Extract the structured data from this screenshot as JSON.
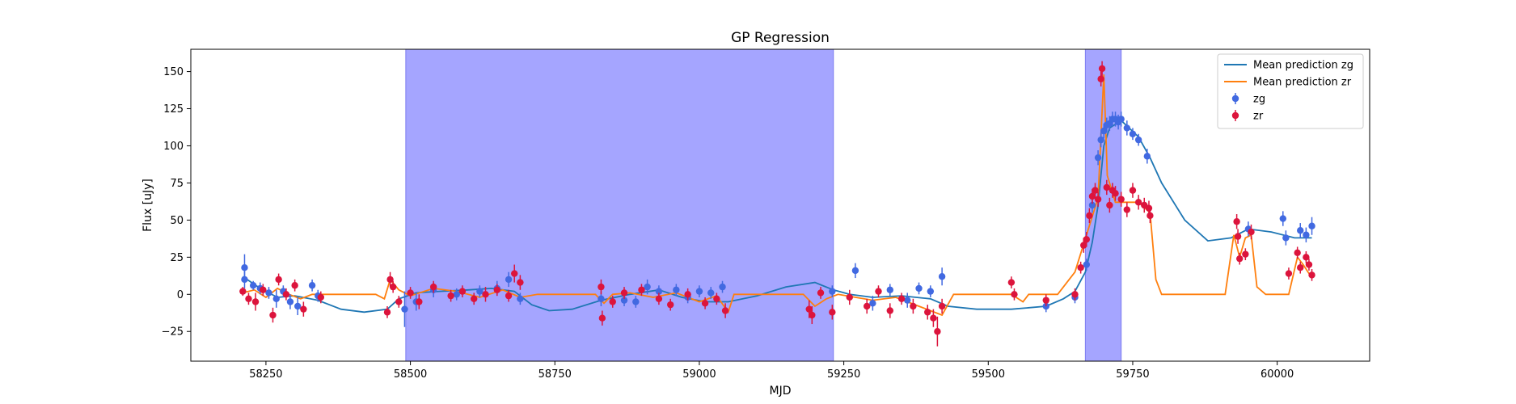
{
  "chart_data": {
    "type": "line",
    "title": "GP Regression",
    "xlabel": "MJD",
    "ylabel": "Flux [uJy]",
    "xlim": [
      58120,
      60160
    ],
    "ylim": [
      -45,
      165
    ],
    "xticks": [
      58250,
      58500,
      58750,
      59000,
      59250,
      59500,
      59750,
      60000
    ],
    "yticks": [
      -25,
      0,
      25,
      50,
      75,
      100,
      125,
      150
    ],
    "grid": false,
    "legend_placement": "top-right",
    "shaded_regions": [
      {
        "x0": 58492,
        "x1": 59232,
        "color": "#a5a5ff"
      },
      {
        "x0": 59668,
        "x1": 59730,
        "color": "#a5a5ff"
      }
    ],
    "series": [
      {
        "name": "Mean prediction zg",
        "kind": "line",
        "color": "#1f77b4",
        "points": [
          [
            58210,
            12
          ],
          [
            58240,
            4
          ],
          [
            58270,
            -2
          ],
          [
            58300,
            -1
          ],
          [
            58340,
            -4
          ],
          [
            58380,
            -10
          ],
          [
            58420,
            -12
          ],
          [
            58460,
            -10
          ],
          [
            58480,
            -3
          ],
          [
            58510,
            1
          ],
          [
            58550,
            2
          ],
          [
            58600,
            3
          ],
          [
            58640,
            4
          ],
          [
            58680,
            2
          ],
          [
            58710,
            -7
          ],
          [
            58740,
            -11
          ],
          [
            58780,
            -10
          ],
          [
            58830,
            -4
          ],
          [
            58880,
            0
          ],
          [
            58930,
            3
          ],
          [
            58970,
            -2
          ],
          [
            59010,
            -5
          ],
          [
            59050,
            -5
          ],
          [
            59100,
            -1
          ],
          [
            59150,
            5
          ],
          [
            59200,
            8
          ],
          [
            59232,
            3
          ],
          [
            59260,
            0
          ],
          [
            59300,
            -2
          ],
          [
            59350,
            -1
          ],
          [
            59400,
            -3
          ],
          [
            59430,
            -8
          ],
          [
            59480,
            -10
          ],
          [
            59540,
            -10
          ],
          [
            59600,
            -8
          ],
          [
            59630,
            -3
          ],
          [
            59650,
            2
          ],
          [
            59668,
            15
          ],
          [
            59680,
            35
          ],
          [
            59690,
            60
          ],
          [
            59700,
            100
          ],
          [
            59710,
            112
          ],
          [
            59730,
            117
          ],
          [
            59760,
            106
          ],
          [
            59780,
            92
          ],
          [
            59800,
            75
          ],
          [
            59840,
            50
          ],
          [
            59880,
            36
          ],
          [
            59920,
            38
          ],
          [
            59950,
            44
          ],
          [
            59990,
            42
          ],
          [
            60030,
            38
          ],
          [
            60060,
            38
          ]
        ]
      },
      {
        "name": "Mean prediction zr",
        "kind": "line",
        "color": "#ff7f0e",
        "points": [
          [
            58210,
            1
          ],
          [
            58230,
            3
          ],
          [
            58250,
            -2
          ],
          [
            58270,
            4
          ],
          [
            58290,
            0
          ],
          [
            58310,
            -3
          ],
          [
            58330,
            0
          ],
          [
            58350,
            0
          ],
          [
            58440,
            0
          ],
          [
            58455,
            -3
          ],
          [
            58465,
            10
          ],
          [
            58480,
            3
          ],
          [
            58500,
            -1
          ],
          [
            58540,
            4
          ],
          [
            58580,
            2
          ],
          [
            58620,
            -2
          ],
          [
            58660,
            3
          ],
          [
            58690,
            -2
          ],
          [
            58720,
            0
          ],
          [
            58820,
            0
          ],
          [
            58835,
            -6
          ],
          [
            58850,
            0
          ],
          [
            58880,
            1
          ],
          [
            58920,
            -2
          ],
          [
            58960,
            1
          ],
          [
            59000,
            -5
          ],
          [
            59030,
            -1
          ],
          [
            59050,
            -12
          ],
          [
            59060,
            0
          ],
          [
            59180,
            0
          ],
          [
            59200,
            -8
          ],
          [
            59220,
            -3
          ],
          [
            59240,
            0
          ],
          [
            59300,
            -4
          ],
          [
            59340,
            -2
          ],
          [
            59380,
            -8
          ],
          [
            59420,
            -14
          ],
          [
            59440,
            0
          ],
          [
            59540,
            0
          ],
          [
            59560,
            -5
          ],
          [
            59570,
            0
          ],
          [
            59620,
            0
          ],
          [
            59650,
            15
          ],
          [
            59670,
            40
          ],
          [
            59690,
            65
          ],
          [
            59700,
            148
          ],
          [
            59706,
            80
          ],
          [
            59720,
            62
          ],
          [
            59760,
            62
          ],
          [
            59780,
            55
          ],
          [
            59790,
            10
          ],
          [
            59800,
            0
          ],
          [
            59910,
            0
          ],
          [
            59925,
            40
          ],
          [
            59935,
            25
          ],
          [
            59945,
            38
          ],
          [
            59955,
            40
          ],
          [
            59965,
            5
          ],
          [
            59980,
            0
          ],
          [
            60020,
            0
          ],
          [
            60035,
            25
          ],
          [
            60045,
            20
          ],
          [
            60055,
            14
          ],
          [
            60060,
            12
          ]
        ]
      },
      {
        "name": "zg",
        "kind": "errorbar",
        "color": "#4169e1",
        "points": [
          [
            58213,
            18,
            9
          ],
          [
            58213,
            10,
            6
          ],
          [
            58228,
            6,
            3
          ],
          [
            58240,
            4,
            4
          ],
          [
            58255,
            1,
            4
          ],
          [
            58268,
            -3,
            6
          ],
          [
            58280,
            2,
            4
          ],
          [
            58292,
            -5,
            5
          ],
          [
            58305,
            -8,
            6
          ],
          [
            58330,
            6,
            4
          ],
          [
            58340,
            -1,
            4
          ],
          [
            58490,
            -10,
            12
          ],
          [
            58510,
            -5,
            6
          ],
          [
            58540,
            3,
            5
          ],
          [
            58580,
            0,
            4
          ],
          [
            58620,
            2,
            4
          ],
          [
            58650,
            4,
            5
          ],
          [
            58670,
            10,
            5
          ],
          [
            58690,
            -3,
            4
          ],
          [
            58830,
            -3,
            5
          ],
          [
            58870,
            -4,
            4
          ],
          [
            58890,
            -5,
            4
          ],
          [
            58910,
            5,
            5
          ],
          [
            58930,
            2,
            4
          ],
          [
            58960,
            3,
            4
          ],
          [
            58980,
            -2,
            4
          ],
          [
            59000,
            2,
            4
          ],
          [
            59020,
            1,
            4
          ],
          [
            59040,
            5,
            4
          ],
          [
            59230,
            2,
            4
          ],
          [
            59270,
            16,
            5
          ],
          [
            59300,
            -6,
            5
          ],
          [
            59330,
            3,
            4
          ],
          [
            59360,
            -4,
            5
          ],
          [
            59380,
            4,
            4
          ],
          [
            59400,
            2,
            4
          ],
          [
            59420,
            12,
            6
          ],
          [
            59600,
            -8,
            4
          ],
          [
            59650,
            -2,
            4
          ],
          [
            59670,
            20,
            4
          ],
          [
            59680,
            60,
            5
          ],
          [
            59690,
            92,
            5
          ],
          [
            59695,
            104,
            5
          ],
          [
            59700,
            110,
            5
          ],
          [
            59705,
            114,
            5
          ],
          [
            59710,
            115,
            5
          ],
          [
            59715,
            118,
            5
          ],
          [
            59720,
            118,
            5
          ],
          [
            59725,
            116,
            5
          ],
          [
            59730,
            118,
            5
          ],
          [
            59740,
            112,
            5
          ],
          [
            59750,
            108,
            4
          ],
          [
            59760,
            104,
            4
          ],
          [
            59775,
            93,
            5
          ],
          [
            59950,
            44,
            5
          ],
          [
            60010,
            51,
            5
          ],
          [
            60015,
            38,
            5
          ],
          [
            60040,
            43,
            5
          ],
          [
            60050,
            40,
            5
          ],
          [
            60060,
            46,
            6
          ]
        ]
      },
      {
        "name": "zr",
        "kind": "errorbar",
        "color": "#dc143c",
        "points": [
          [
            58210,
            2,
            3
          ],
          [
            58220,
            -3,
            4
          ],
          [
            58232,
            -5,
            6
          ],
          [
            58245,
            3,
            4
          ],
          [
            58262,
            -14,
            5
          ],
          [
            58272,
            10,
            4
          ],
          [
            58285,
            0,
            4
          ],
          [
            58300,
            6,
            4
          ],
          [
            58315,
            -10,
            5
          ],
          [
            58345,
            -2,
            4
          ],
          [
            58460,
            -12,
            4
          ],
          [
            58465,
            10,
            5
          ],
          [
            58470,
            5,
            4
          ],
          [
            58480,
            -5,
            4
          ],
          [
            58500,
            1,
            4
          ],
          [
            58515,
            -5,
            5
          ],
          [
            58540,
            5,
            4
          ],
          [
            58570,
            -1,
            4
          ],
          [
            58590,
            2,
            4
          ],
          [
            58610,
            -3,
            4
          ],
          [
            58630,
            0,
            5
          ],
          [
            58650,
            3,
            4
          ],
          [
            58670,
            -1,
            4
          ],
          [
            58680,
            14,
            6
          ],
          [
            58690,
            8,
            5
          ],
          [
            58830,
            5,
            5
          ],
          [
            58832,
            -16,
            5
          ],
          [
            58850,
            -5,
            4
          ],
          [
            58870,
            1,
            4
          ],
          [
            58900,
            3,
            4
          ],
          [
            58930,
            -3,
            4
          ],
          [
            58950,
            -7,
            4
          ],
          [
            58980,
            0,
            4
          ],
          [
            59010,
            -6,
            4
          ],
          [
            59030,
            -3,
            4
          ],
          [
            59045,
            -11,
            5
          ],
          [
            59190,
            -10,
            6
          ],
          [
            59195,
            -14,
            6
          ],
          [
            59210,
            1,
            4
          ],
          [
            59230,
            -12,
            5
          ],
          [
            59260,
            -2,
            5
          ],
          [
            59290,
            -8,
            5
          ],
          [
            59310,
            2,
            4
          ],
          [
            59330,
            -11,
            5
          ],
          [
            59350,
            -3,
            4
          ],
          [
            59370,
            -8,
            5
          ],
          [
            59395,
            -12,
            5
          ],
          [
            59405,
            -16,
            6
          ],
          [
            59412,
            -25,
            10
          ],
          [
            59420,
            -8,
            5
          ],
          [
            59540,
            8,
            4
          ],
          [
            59545,
            0,
            4
          ],
          [
            59600,
            -4,
            4
          ],
          [
            59650,
            0,
            4
          ],
          [
            59660,
            18,
            4
          ],
          [
            59665,
            33,
            5
          ],
          [
            59670,
            37,
            5
          ],
          [
            59675,
            53,
            5
          ],
          [
            59680,
            66,
            5
          ],
          [
            59685,
            70,
            5
          ],
          [
            59690,
            64,
            5
          ],
          [
            59695,
            145,
            5
          ],
          [
            59697,
            152,
            5
          ],
          [
            59705,
            72,
            5
          ],
          [
            59710,
            60,
            5
          ],
          [
            59715,
            70,
            5
          ],
          [
            59720,
            68,
            5
          ],
          [
            59730,
            64,
            5
          ],
          [
            59740,
            57,
            5
          ],
          [
            59750,
            70,
            5
          ],
          [
            59760,
            62,
            5
          ],
          [
            59770,
            60,
            5
          ],
          [
            59778,
            58,
            5
          ],
          [
            59780,
            53,
            5
          ],
          [
            59930,
            49,
            5
          ],
          [
            59932,
            39,
            5
          ],
          [
            59935,
            24,
            4
          ],
          [
            59945,
            27,
            4
          ],
          [
            59955,
            42,
            5
          ],
          [
            60020,
            14,
            4
          ],
          [
            60035,
            28,
            4
          ],
          [
            60040,
            18,
            4
          ],
          [
            60050,
            25,
            4
          ],
          [
            60055,
            20,
            4
          ],
          [
            60060,
            13,
            4
          ]
        ]
      }
    ]
  }
}
